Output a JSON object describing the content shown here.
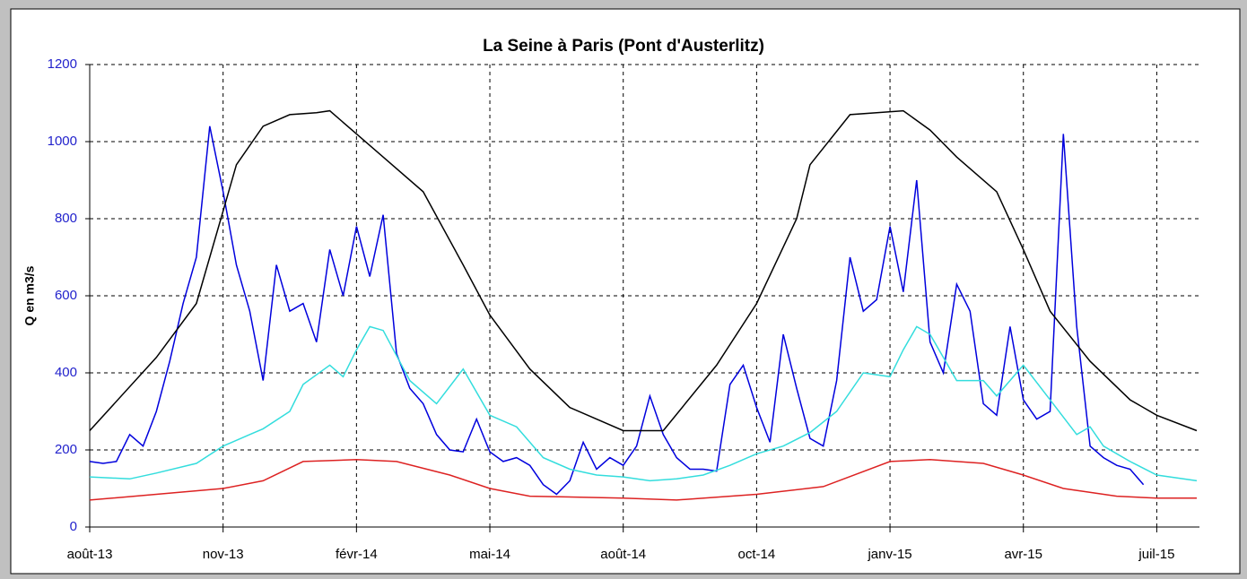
{
  "chart_data": {
    "type": "line",
    "title": "La Seine à Paris (Pont d'Austerlitz)",
    "y_label": "Q en m3/s",
    "xlim": [
      0,
      8.32
    ],
    "xticks": [
      {
        "value": 0,
        "label": "août-13"
      },
      {
        "value": 1,
        "label": "nov-13"
      },
      {
        "value": 2,
        "label": "févr-14"
      },
      {
        "value": 3,
        "label": "mai-14"
      },
      {
        "value": 4,
        "label": "août-14"
      },
      {
        "value": 5,
        "label": "oct-14"
      },
      {
        "value": 6,
        "label": "janv-15"
      },
      {
        "value": 7,
        "label": "avr-15"
      },
      {
        "value": 8,
        "label": "juil-15"
      }
    ],
    "ylim": [
      0,
      1200
    ],
    "yticks": [
      0,
      200,
      400,
      600,
      800,
      1000,
      1200
    ],
    "grid": true,
    "series": [
      {
        "color": "#0000dd",
        "x": [
          0,
          0.1,
          0.2,
          0.3,
          0.4,
          0.5,
          0.6,
          0.7,
          0.8,
          0.9,
          1.0,
          1.1,
          1.2,
          1.3,
          1.4,
          1.5,
          1.6,
          1.7,
          1.8,
          1.9,
          2.0,
          2.1,
          2.2,
          2.3,
          2.4,
          2.5,
          2.6,
          2.7,
          2.8,
          2.9,
          3.0,
          3.1,
          3.2,
          3.3,
          3.4,
          3.5,
          3.6,
          3.7,
          3.8,
          3.9,
          4.0,
          4.1,
          4.2,
          4.3,
          4.4,
          4.5,
          4.6,
          4.7,
          4.8,
          4.9,
          5.0,
          5.1,
          5.2,
          5.3,
          5.4,
          5.5,
          5.6,
          5.7,
          5.8,
          5.9,
          6.0,
          6.1,
          6.2,
          6.3,
          6.4,
          6.5,
          6.6,
          6.7,
          6.8,
          6.9,
          7.0,
          7.1,
          7.2,
          7.3,
          7.4,
          7.5,
          7.6,
          7.7,
          7.8,
          7.9
        ],
        "values": [
          170,
          165,
          170,
          240,
          210,
          300,
          430,
          580,
          700,
          1040,
          870,
          680,
          560,
          380,
          680,
          560,
          580,
          480,
          720,
          600,
          780,
          650,
          810,
          450,
          360,
          320,
          240,
          200,
          195,
          280,
          195,
          170,
          180,
          160,
          110,
          85,
          120,
          220,
          150,
          180,
          160,
          210,
          340,
          240,
          180,
          150,
          150,
          145,
          370,
          420,
          310,
          220,
          500,
          360,
          230,
          210,
          380,
          700,
          560,
          590,
          780,
          610,
          900,
          480,
          400,
          630,
          560,
          320,
          290,
          520,
          330,
          280,
          300,
          1020,
          520,
          210,
          180,
          160,
          150,
          110
        ]
      },
      {
        "color": "#33dddd",
        "x": [
          0,
          0.3,
          0.5,
          0.8,
          1.0,
          1.2,
          1.3,
          1.5,
          1.6,
          1.8,
          1.9,
          2.0,
          2.1,
          2.2,
          2.4,
          2.6,
          2.8,
          3.0,
          3.2,
          3.4,
          3.6,
          3.8,
          4.0,
          4.2,
          4.4,
          4.6,
          4.8,
          5.0,
          5.2,
          5.4,
          5.6,
          5.8,
          6.0,
          6.1,
          6.2,
          6.3,
          6.5,
          6.7,
          6.8,
          7.0,
          7.2,
          7.4,
          7.5,
          7.6,
          7.8,
          8.0,
          8.3
        ],
        "values": [
          130,
          125,
          140,
          165,
          210,
          240,
          255,
          300,
          370,
          420,
          390,
          460,
          520,
          510,
          380,
          320,
          410,
          290,
          260,
          180,
          150,
          135,
          130,
          120,
          125,
          135,
          160,
          190,
          210,
          245,
          300,
          400,
          390,
          460,
          520,
          500,
          380,
          380,
          340,
          420,
          330,
          240,
          260,
          210,
          170,
          135,
          120
        ]
      },
      {
        "color": "#dd2222",
        "x": [
          0,
          0.5,
          1.0,
          1.3,
          1.6,
          2.0,
          2.3,
          2.7,
          3.0,
          3.3,
          4.0,
          4.4,
          5.0,
          5.5,
          6.0,
          6.3,
          6.7,
          7.0,
          7.3,
          7.7,
          8.0,
          8.3
        ],
        "values": [
          70,
          85,
          100,
          120,
          170,
          175,
          170,
          135,
          100,
          80,
          75,
          70,
          85,
          105,
          170,
          175,
          165,
          135,
          100,
          80,
          75,
          75
        ]
      },
      {
        "color": "#000000",
        "x": [
          0,
          0.5,
          0.8,
          1.0,
          1.1,
          1.3,
          1.5,
          1.7,
          1.8,
          2.0,
          2.2,
          2.5,
          2.8,
          3.0,
          3.3,
          3.6,
          4.0,
          4.3,
          4.7,
          5.0,
          5.3,
          5.4,
          5.7,
          5.9,
          6.1,
          6.3,
          6.5,
          6.8,
          7.0,
          7.2,
          7.5,
          7.8,
          8.0,
          8.3
        ],
        "values": [
          250,
          440,
          580,
          820,
          940,
          1040,
          1070,
          1075,
          1080,
          1020,
          960,
          870,
          680,
          550,
          410,
          310,
          250,
          250,
          420,
          580,
          800,
          940,
          1070,
          1075,
          1080,
          1030,
          960,
          870,
          720,
          560,
          430,
          330,
          290,
          250
        ]
      }
    ]
  }
}
